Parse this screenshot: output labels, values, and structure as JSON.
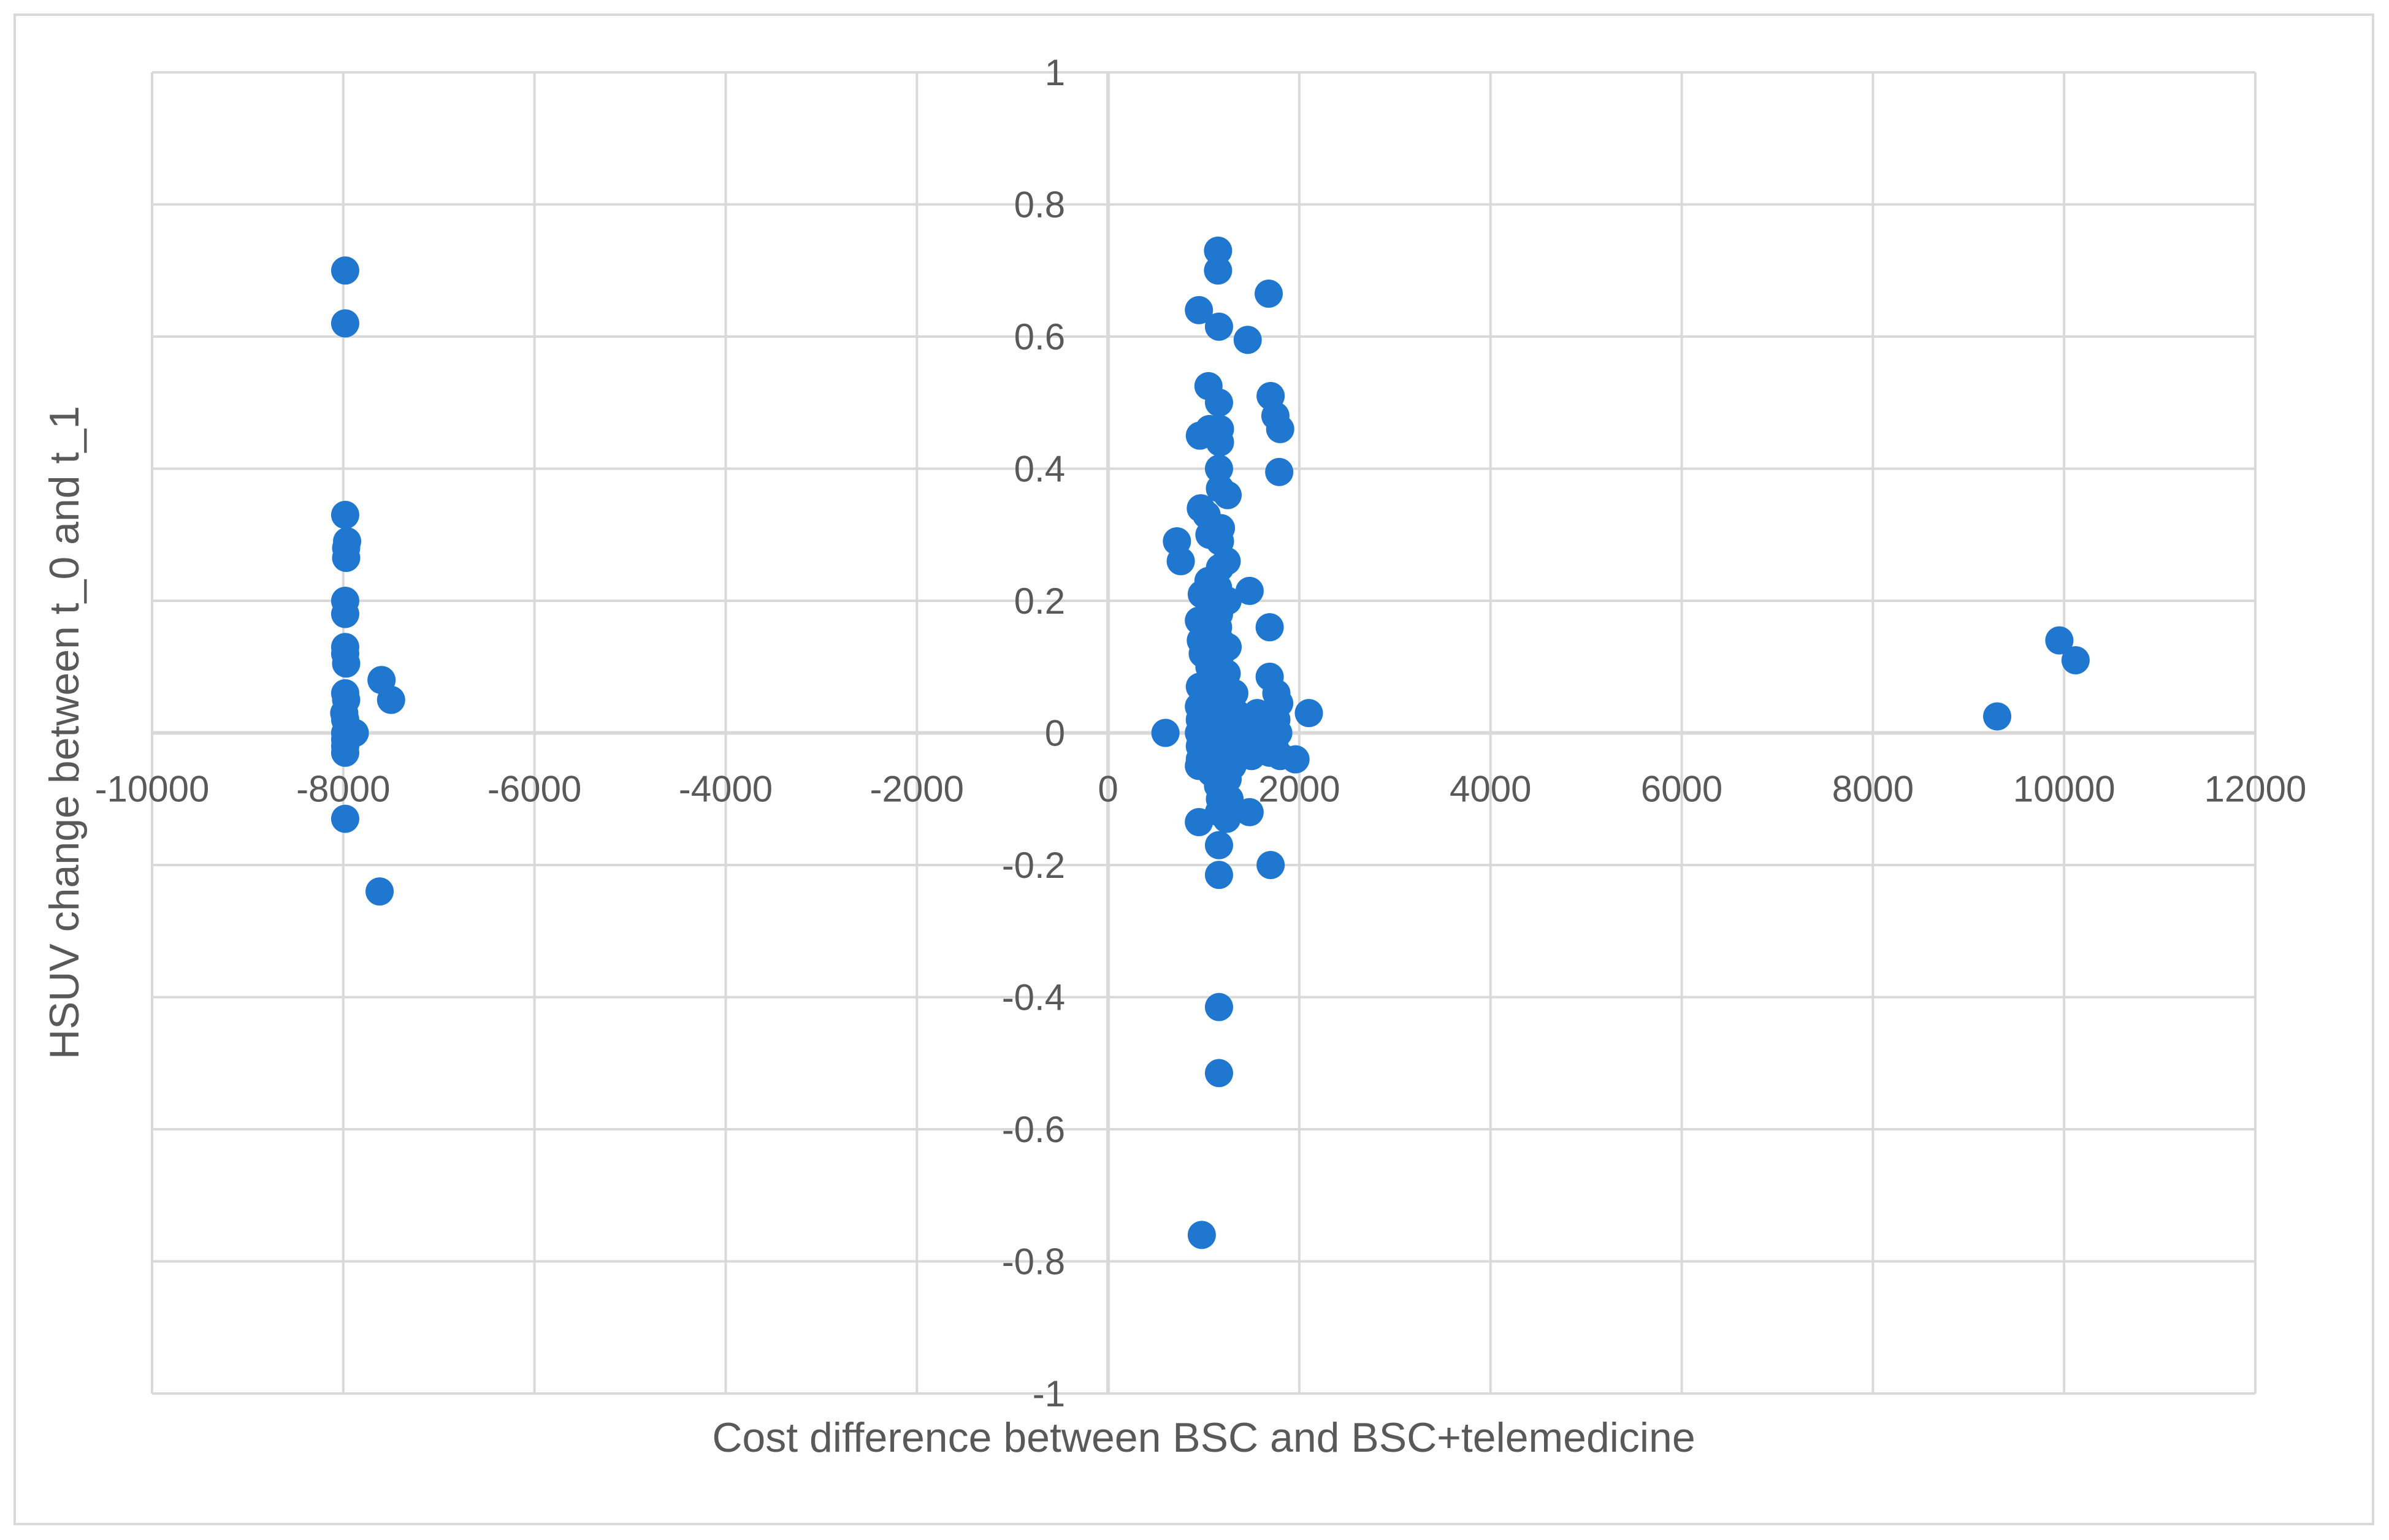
{
  "chart_data": {
    "type": "scatter",
    "title": "",
    "xlabel": "Cost difference between BSC and BSC+telemedicine",
    "ylabel": "HSUV change between t_0 and t_1",
    "xlim": [
      -10000,
      12000
    ],
    "ylim": [
      -1,
      1
    ],
    "x_ticks": [
      "-10000",
      "-8000",
      "-6000",
      "-4000",
      "-2000",
      "0",
      "2000",
      "4000",
      "6000",
      "8000",
      "10000",
      "12000"
    ],
    "y_ticks": [
      "1",
      "0.8",
      "0.6",
      "0.4",
      "0.2",
      "0",
      "-0.2",
      "-0.4",
      "-0.6",
      "-0.8",
      "-1"
    ],
    "grid": true,
    "legend": "none",
    "marker_color": "#1f77d0",
    "gridline_color": "#d9d9d9",
    "series": [
      {
        "points": [
          [
            -7980,
            0.7
          ],
          [
            -7980,
            0.62
          ],
          [
            -7980,
            0.33
          ],
          [
            -7960,
            0.29
          ],
          [
            -7970,
            0.28
          ],
          [
            -7970,
            0.265
          ],
          [
            -7980,
            0.2
          ],
          [
            -7980,
            0.18
          ],
          [
            -7980,
            0.13
          ],
          [
            -7980,
            0.12
          ],
          [
            -7970,
            0.105
          ],
          [
            -7980,
            0.06
          ],
          [
            -7970,
            0.05
          ],
          [
            -7990,
            0.03
          ],
          [
            -7980,
            0.02
          ],
          [
            -7980,
            0.0
          ],
          [
            -7980,
            -0.01
          ],
          [
            -7980,
            -0.02
          ],
          [
            -7980,
            -0.03
          ],
          [
            -7980,
            -0.13
          ],
          [
            -7880,
            0.0
          ],
          [
            -7600,
            0.08
          ],
          [
            -7500,
            0.05
          ],
          [
            -7620,
            -0.24
          ],
          [
            600,
            0.0
          ],
          [
            720,
            0.29
          ],
          [
            760,
            0.26
          ],
          [
            950,
            0.64
          ],
          [
            960,
            0.45
          ],
          [
            970,
            0.34
          ],
          [
            980,
            0.21
          ],
          [
            950,
            0.17
          ],
          [
            970,
            0.14
          ],
          [
            990,
            0.12
          ],
          [
            960,
            0.07
          ],
          [
            950,
            0.04
          ],
          [
            960,
            0.02
          ],
          [
            950,
            0.0
          ],
          [
            970,
            -0.01
          ],
          [
            960,
            -0.02
          ],
          [
            980,
            -0.03
          ],
          [
            960,
            -0.04
          ],
          [
            950,
            -0.05
          ],
          [
            950,
            -0.135
          ],
          [
            980,
            -0.76
          ],
          [
            1050,
            0.525
          ],
          [
            1060,
            0.46
          ],
          [
            1030,
            0.33
          ],
          [
            1060,
            0.3
          ],
          [
            1050,
            0.23
          ],
          [
            1070,
            0.19
          ],
          [
            1040,
            0.15
          ],
          [
            1060,
            0.1
          ],
          [
            1040,
            0.06
          ],
          [
            1050,
            0.02
          ],
          [
            1060,
            -0.02
          ],
          [
            1080,
            -0.06
          ],
          [
            1150,
            0.73
          ],
          [
            1150,
            0.7
          ],
          [
            1160,
            0.615
          ],
          [
            1160,
            0.5
          ],
          [
            1170,
            0.46
          ],
          [
            1170,
            0.44
          ],
          [
            1160,
            0.4
          ],
          [
            1170,
            0.37
          ],
          [
            1180,
            0.31
          ],
          [
            1170,
            0.29
          ],
          [
            1170,
            0.25
          ],
          [
            1150,
            0.22
          ],
          [
            1160,
            0.18
          ],
          [
            1150,
            0.16
          ],
          [
            1170,
            0.14
          ],
          [
            1180,
            0.12
          ],
          [
            1160,
            0.1
          ],
          [
            1150,
            0.08
          ],
          [
            1170,
            0.06
          ],
          [
            1180,
            0.04
          ],
          [
            1150,
            0.02
          ],
          [
            1160,
            0.0
          ],
          [
            1180,
            -0.02
          ],
          [
            1170,
            -0.04
          ],
          [
            1160,
            -0.06
          ],
          [
            1150,
            -0.08
          ],
          [
            1170,
            -0.1
          ],
          [
            1160,
            -0.12
          ],
          [
            1160,
            -0.17
          ],
          [
            1160,
            -0.215
          ],
          [
            1160,
            -0.415
          ],
          [
            1160,
            -0.515
          ],
          [
            1250,
            0.36
          ],
          [
            1240,
            0.26
          ],
          [
            1250,
            0.2
          ],
          [
            1250,
            0.13
          ],
          [
            1240,
            0.09
          ],
          [
            1260,
            0.05
          ],
          [
            1240,
            0.02
          ],
          [
            1250,
            -0.01
          ],
          [
            1260,
            -0.04
          ],
          [
            1250,
            -0.07
          ],
          [
            1270,
            -0.1
          ],
          [
            1240,
            -0.13
          ],
          [
            1320,
            0.06
          ],
          [
            1340,
            0.03
          ],
          [
            1310,
            0.0
          ],
          [
            1350,
            -0.03
          ],
          [
            1300,
            -0.05
          ],
          [
            1380,
            0.01
          ],
          [
            1460,
            0.595
          ],
          [
            1480,
            0.215
          ],
          [
            1490,
            0.02
          ],
          [
            1470,
            -0.02
          ],
          [
            1500,
            -0.035
          ],
          [
            1480,
            -0.12
          ],
          [
            1560,
            0.03
          ],
          [
            1580,
            -0.01
          ],
          [
            1560,
            0.01
          ],
          [
            1680,
            0.665
          ],
          [
            1700,
            0.51
          ],
          [
            1750,
            0.48
          ],
          [
            1800,
            0.46
          ],
          [
            1790,
            0.395
          ],
          [
            1690,
            0.16
          ],
          [
            1690,
            0.085
          ],
          [
            1760,
            0.06
          ],
          [
            1790,
            0.045
          ],
          [
            1700,
            0.03
          ],
          [
            1760,
            0.02
          ],
          [
            1720,
            0.01
          ],
          [
            1780,
            0.0
          ],
          [
            1700,
            -0.01
          ],
          [
            1740,
            -0.02
          ],
          [
            1690,
            -0.03
          ],
          [
            1800,
            -0.035
          ],
          [
            1700,
            -0.2
          ],
          [
            1960,
            -0.04
          ],
          [
            2100,
            0.03
          ],
          [
            9300,
            0.025
          ],
          [
            9950,
            0.14
          ],
          [
            10120,
            0.11
          ]
        ]
      }
    ]
  }
}
